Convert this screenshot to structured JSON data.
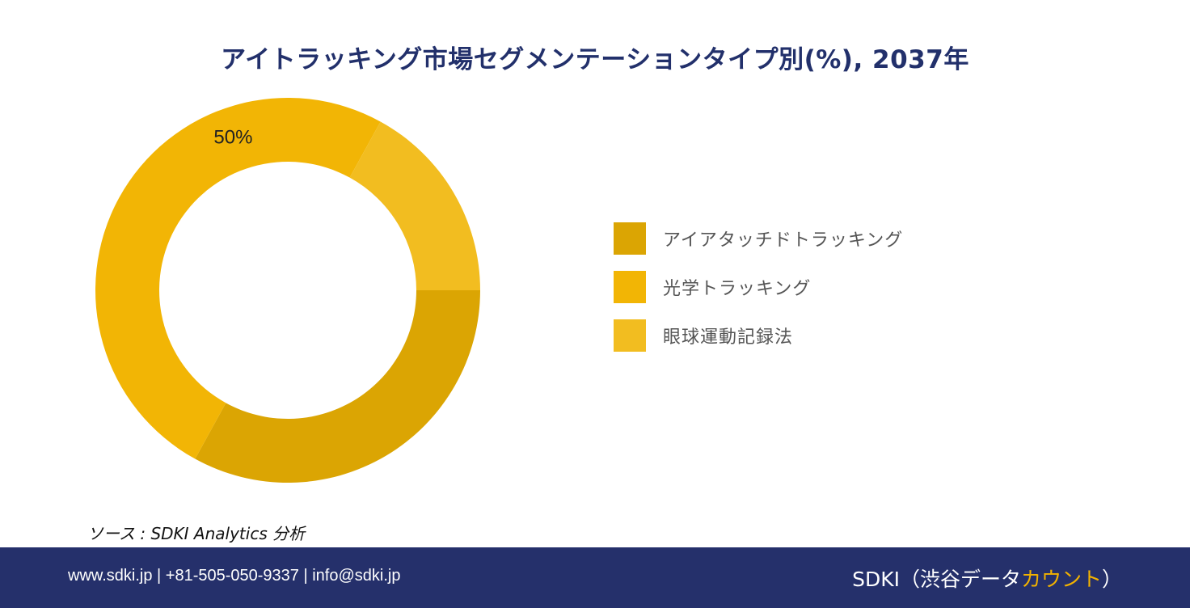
{
  "chart_data": {
    "type": "pie",
    "style": "donut",
    "title": "アイトラッキング市場セグメンテーションタイプ別(%), 2037年",
    "categories": [
      "アイアタッチドトラッキング",
      "光学トラッキング",
      "眼球運動記録法"
    ],
    "values": [
      33,
      50,
      17
    ],
    "colors": [
      "#DBA503",
      "#F2B505",
      "#F2BD20"
    ],
    "data_labels": [
      "",
      "50%",
      ""
    ],
    "legend_position": "right"
  },
  "source": {
    "text": "ソース : SDKI Analytics 分析"
  },
  "footer": {
    "contact": "www.sdki.jp | +81-505-050-9337 | info@sdki.jp",
    "brand_prefix": "SDKI（渋谷データ",
    "brand_accent": "カウント",
    "brand_suffix": "）"
  }
}
